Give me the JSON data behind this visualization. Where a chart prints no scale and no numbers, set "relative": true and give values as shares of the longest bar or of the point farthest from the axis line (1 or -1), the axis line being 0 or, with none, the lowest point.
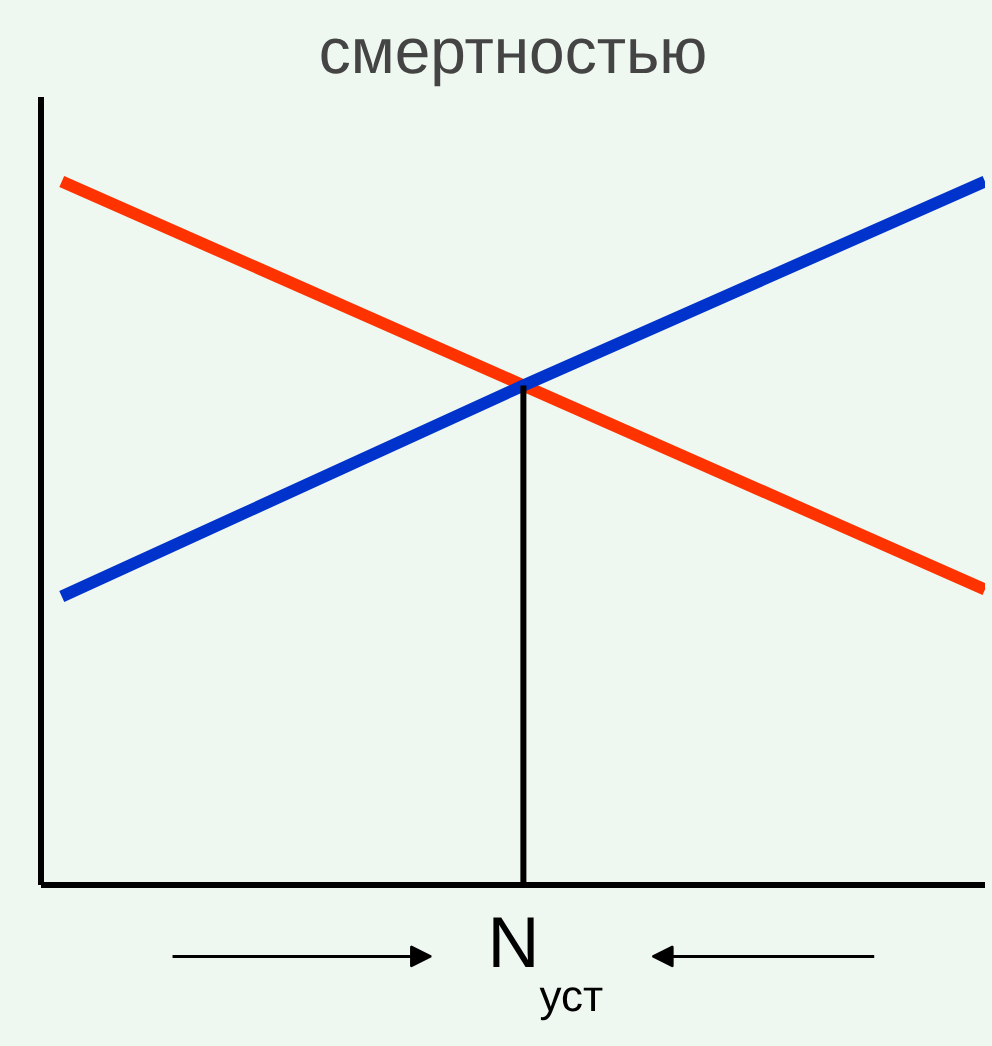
{
  "chart_data": {
    "type": "line",
    "title": "смертностью",
    "xlabel": "N$_{уст}$",
    "categories": [
      null,
      null,
      null
    ],
    "relative": true,
    "marker": "none",
    "line_style": "solid",
    "series": [
      {
        "color": "#ff3300",
        "values": [
          1,
          0.71,
          0.42
        ]
      },
      {
        "color": "#0033cc",
        "values": [
          0.41,
          0.71,
          1
        ]
      }
    ]
  }
}
